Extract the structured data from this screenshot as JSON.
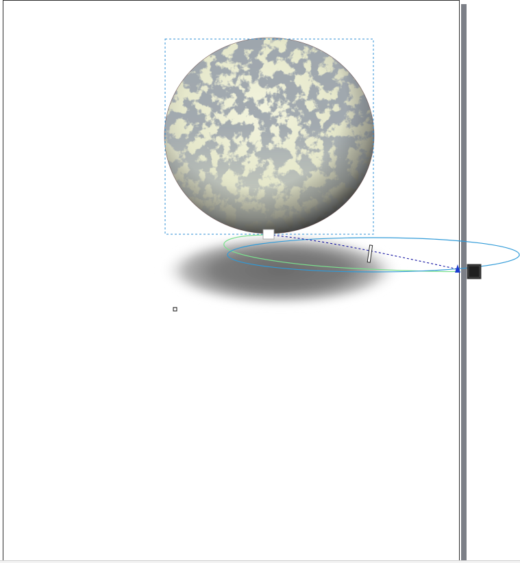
{
  "canvas": {
    "page_color": "#ffffff",
    "page_border_color": "#2b2b2b",
    "page_shadow_color": "#7c7f87"
  },
  "objects": [
    {
      "name": "marbled-sphere",
      "fill": "pattern",
      "base_color": "#e9eccf",
      "blot_color": "#57616a"
    },
    {
      "name": "drop-shadow",
      "color": "#6f6f6f"
    }
  ],
  "selection": {
    "bbox_stroke": "#2d8fd6",
    "handle_color": "#ffffff",
    "end_handle_color": "#1f1f1f",
    "orbit_color": "#2f9ad8",
    "guide_color": "#7be08e",
    "vector_color": "#1010a0",
    "vector_head_color": "#1a3ad0"
  }
}
